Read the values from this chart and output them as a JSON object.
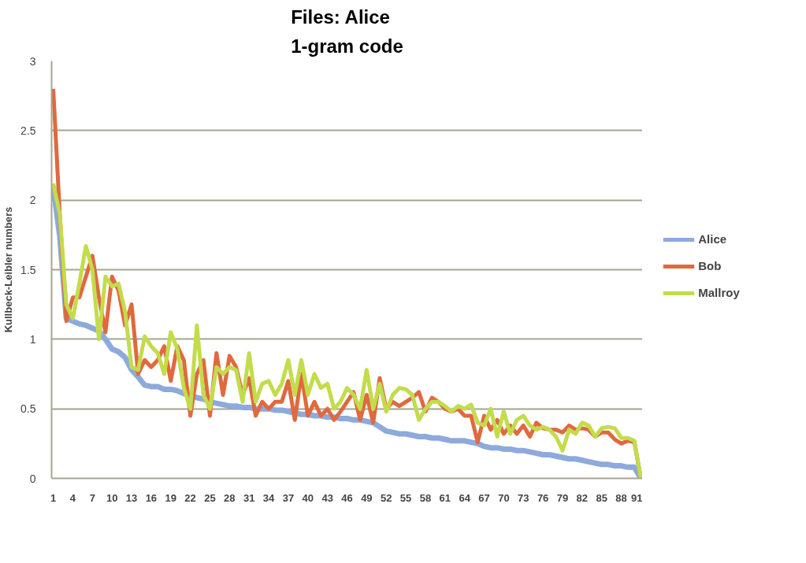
{
  "chart_data": {
    "type": "line",
    "title": "Files: Alice\n1-gram code",
    "ylabel": "Kullbeck-Leibler numbers",
    "categories": [
      "1",
      null,
      null,
      "4",
      null,
      null,
      "7",
      null,
      null,
      "10",
      null,
      null,
      "13",
      null,
      null,
      "16",
      null,
      null,
      "19",
      null,
      null,
      "22",
      null,
      null,
      "25",
      null,
      null,
      "28",
      null,
      null,
      "31",
      null,
      null,
      "34",
      null,
      null,
      "37",
      null,
      null,
      "40",
      null,
      null,
      "43",
      null,
      null,
      "46",
      null,
      null,
      "49",
      null,
      null,
      "52",
      null,
      null,
      "55",
      null,
      null,
      "58",
      null,
      null,
      "61",
      null,
      null,
      "64",
      null,
      null,
      "67",
      null,
      null,
      "70",
      null,
      null,
      "73",
      null,
      null,
      "76",
      null,
      null,
      "79",
      null,
      null,
      "82",
      null,
      null,
      "85",
      null,
      null,
      "88",
      null,
      null,
      "91"
    ],
    "series": [
      {
        "name": "Alice",
        "color": "#8eaadc",
        "values": [
          2.1,
          1.74,
          1.15,
          1.13,
          1.11,
          1.1,
          1.08,
          1.06,
          1.0,
          0.93,
          0.91,
          0.87,
          0.78,
          0.73,
          0.67,
          0.66,
          0.66,
          0.64,
          0.64,
          0.63,
          0.61,
          0.6,
          0.58,
          0.57,
          0.55,
          0.54,
          0.53,
          0.52,
          0.52,
          0.51,
          0.51,
          0.5,
          0.5,
          0.5,
          0.49,
          0.49,
          0.48,
          0.47,
          0.46,
          0.46,
          0.45,
          0.45,
          0.44,
          0.44,
          0.43,
          0.43,
          0.42,
          0.42,
          0.41,
          0.4,
          0.37,
          0.34,
          0.33,
          0.32,
          0.32,
          0.31,
          0.3,
          0.3,
          0.29,
          0.29,
          0.28,
          0.27,
          0.27,
          0.27,
          0.26,
          0.25,
          0.23,
          0.22,
          0.22,
          0.21,
          0.21,
          0.2,
          0.2,
          0.19,
          0.18,
          0.17,
          0.17,
          0.16,
          0.15,
          0.14,
          0.14,
          0.13,
          0.12,
          0.11,
          0.1,
          0.1,
          0.09,
          0.09,
          0.08,
          0.08,
          0.0
        ]
      },
      {
        "name": "Bob",
        "color": "#e0693f",
        "values": [
          2.8,
          1.9,
          1.13,
          1.3,
          1.3,
          1.45,
          1.6,
          1.3,
          1.05,
          1.45,
          1.35,
          1.1,
          1.25,
          0.75,
          0.85,
          0.8,
          0.85,
          0.95,
          0.7,
          0.95,
          0.85,
          0.45,
          0.75,
          0.85,
          0.45,
          0.9,
          0.6,
          0.88,
          0.8,
          0.6,
          0.72,
          0.45,
          0.55,
          0.5,
          0.55,
          0.55,
          0.7,
          0.42,
          0.75,
          0.45,
          0.55,
          0.45,
          0.5,
          0.42,
          0.48,
          0.55,
          0.62,
          0.42,
          0.6,
          0.4,
          0.72,
          0.5,
          0.55,
          0.52,
          0.55,
          0.58,
          0.62,
          0.48,
          0.58,
          0.55,
          0.5,
          0.48,
          0.5,
          0.45,
          0.45,
          0.26,
          0.45,
          0.35,
          0.42,
          0.32,
          0.38,
          0.32,
          0.38,
          0.3,
          0.4,
          0.36,
          0.35,
          0.35,
          0.33,
          0.38,
          0.35,
          0.36,
          0.35,
          0.3,
          0.33,
          0.33,
          0.28,
          0.25,
          0.27,
          0.26,
          0.0
        ]
      },
      {
        "name": "Mallroy",
        "color": "#c3dc4c",
        "values": [
          2.12,
          1.9,
          1.25,
          1.15,
          1.4,
          1.67,
          1.5,
          1.0,
          1.45,
          1.38,
          1.4,
          1.2,
          0.8,
          0.78,
          1.02,
          0.95,
          0.9,
          0.75,
          1.05,
          0.93,
          0.65,
          0.5,
          1.1,
          0.6,
          0.5,
          0.8,
          0.75,
          0.8,
          0.78,
          0.55,
          0.9,
          0.55,
          0.68,
          0.7,
          0.6,
          0.68,
          0.85,
          0.6,
          0.85,
          0.6,
          0.75,
          0.65,
          0.68,
          0.5,
          0.55,
          0.65,
          0.6,
          0.5,
          0.78,
          0.5,
          0.68,
          0.48,
          0.6,
          0.65,
          0.64,
          0.6,
          0.42,
          0.5,
          0.55,
          0.55,
          0.52,
          0.48,
          0.52,
          0.5,
          0.53,
          0.4,
          0.38,
          0.5,
          0.3,
          0.48,
          0.32,
          0.42,
          0.45,
          0.38,
          0.35,
          0.37,
          0.35,
          0.3,
          0.2,
          0.35,
          0.32,
          0.4,
          0.38,
          0.3,
          0.36,
          0.37,
          0.36,
          0.29,
          0.29,
          0.27,
          0.0
        ]
      }
    ],
    "ylim": [
      0,
      3
    ],
    "yticks": [
      0,
      0.5,
      1,
      1.5,
      2,
      2.5,
      3
    ],
    "grid": "y",
    "legend": "right",
    "marker": "none",
    "line_style": "solid"
  }
}
